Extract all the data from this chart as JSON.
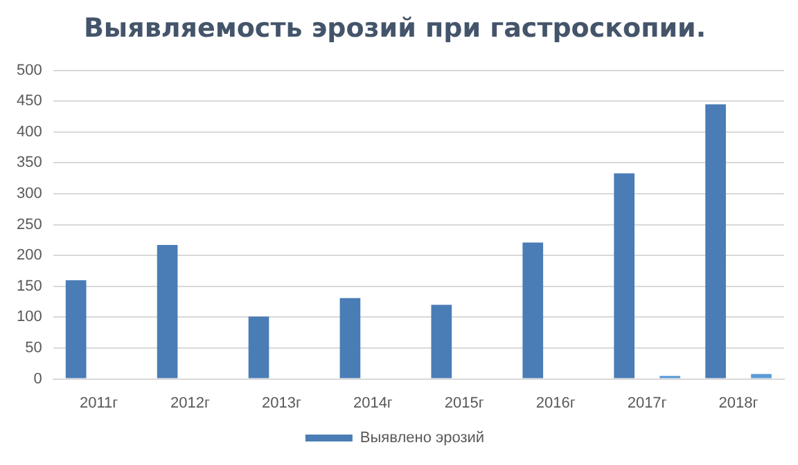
{
  "chart_data": {
    "type": "bar",
    "title": "Выявляемость эрозий при гастроскопии.",
    "categories": [
      "2011г",
      "2012г",
      "2013г",
      "2014г",
      "2015г",
      "2016г",
      "2017г",
      "2018г"
    ],
    "series": [
      {
        "name": "Выявлено эрозий",
        "color": "#4a7db5",
        "values": [
          160,
          217,
          101,
          131,
          120,
          221,
          333,
          445
        ]
      },
      {
        "color": "#5b9bd5",
        "values": [
          null,
          null,
          null,
          null,
          null,
          null,
          5,
          8
        ]
      }
    ],
    "ylim": [
      0,
      500
    ],
    "yticks": [
      0,
      50,
      100,
      150,
      200,
      250,
      300,
      350,
      400,
      450,
      500
    ],
    "grid": "y",
    "legend": "bottom"
  }
}
